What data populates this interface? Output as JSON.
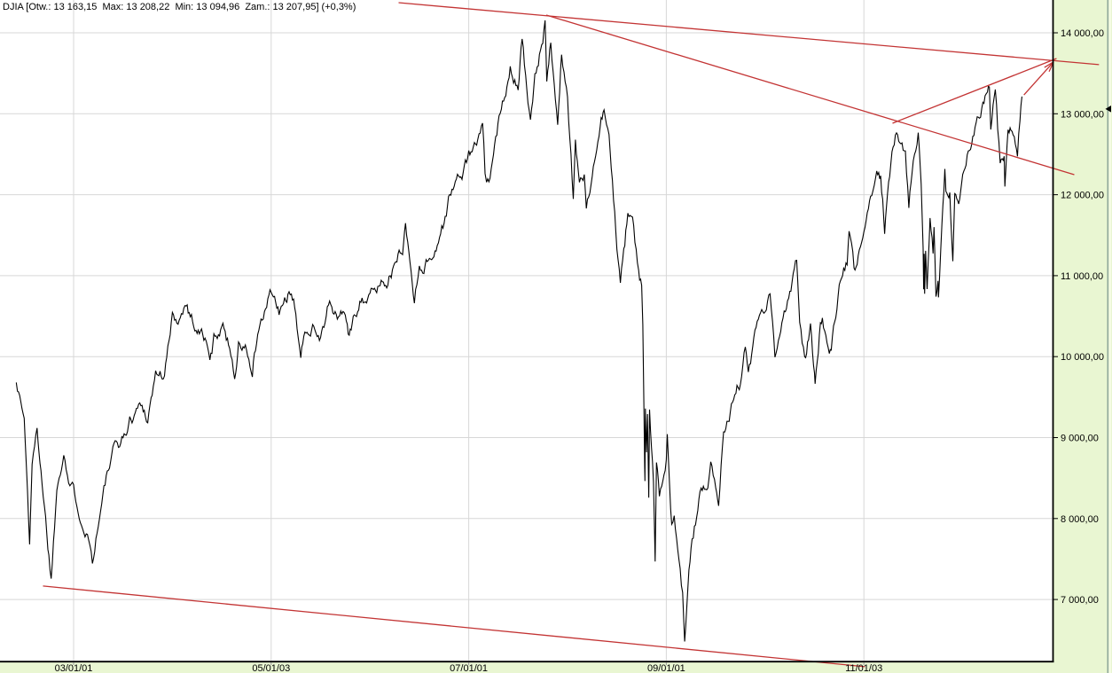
{
  "header": {
    "title": "DJIA [Otw.: 13 163,15  Max: 13 208,22  Min: 13 094,96  Zam.: 13 207,95] (+0,3%)"
  },
  "colors": {
    "background": "#ffffff",
    "axis_panel_green": "#e9f6d2",
    "panel_edge_dark": "#8fa89b",
    "panel_edge_light": "#f4fbe3",
    "grid": "#d7d7d7",
    "tick": "#9a9a9a",
    "price_line": "#000000",
    "trend_line": "#c33434",
    "axis_border": "#000000",
    "marker": "#000000"
  },
  "chart_data": {
    "type": "line",
    "title": "DJIA",
    "summary": {
      "open_label": "Otw.:",
      "open": "13 163,15",
      "high_label": "Max:",
      "high": "13 208,22",
      "low_label": "Min:",
      "low": "13 094,96",
      "close_label": "Zam.:",
      "close": "13 207,95",
      "change_pct": "+0,3%"
    },
    "xlabel": "",
    "ylabel": "",
    "grid": true,
    "ylim": [
      6230,
      14400
    ],
    "xlim_years": [
      2002.35,
      2013.45
    ],
    "y_axis": {
      "side": "right",
      "ticks": [
        {
          "value": 14000,
          "label": "14 000,00"
        },
        {
          "value": 13000,
          "label": "13 000,00"
        },
        {
          "value": 12000,
          "label": "12 000,00"
        },
        {
          "value": 11000,
          "label": "11 000,00"
        },
        {
          "value": 10000,
          "label": "10 000,00"
        },
        {
          "value": 9000,
          "label": "9 000,00"
        },
        {
          "value": 8000,
          "label": "8 000,00"
        },
        {
          "value": 7000,
          "label": "7 000,00"
        }
      ]
    },
    "x_axis": {
      "ticks": [
        {
          "t": 2003.0,
          "label": "03/01/01"
        },
        {
          "t": 2005.0,
          "label": "05/01/03"
        },
        {
          "t": 2007.0,
          "label": "07/01/01"
        },
        {
          "t": 2009.0,
          "label": "09/01/01"
        },
        {
          "t": 2011.0,
          "label": "11/01/03"
        }
      ]
    },
    "last_price_marker": {
      "value": 13060
    },
    "trendlines": [
      {
        "name": "upper-resistance-line",
        "from": [
          2006.29,
          14372
        ],
        "to": [
          2013.38,
          13607
        ],
        "arrow": false
      },
      {
        "name": "resistance-from-2007-peak",
        "from": [
          2007.785,
          14219
        ],
        "to": [
          2013.13,
          12248
        ],
        "arrow": false
      },
      {
        "name": "support-of-2011-2012-rally",
        "from": [
          2011.29,
          12883
        ],
        "to": [
          2012.95,
          13682
        ],
        "arrow": false
      },
      {
        "name": "support-under-2002-2009-lows",
        "from": [
          2002.69,
          7167
        ],
        "to": [
          2011.01,
          6170
        ],
        "arrow": false
      },
      {
        "name": "projection-arrow-to-apex",
        "from": [
          2012.62,
          13233
        ],
        "to": [
          2012.92,
          13640
        ],
        "arrow": true
      }
    ],
    "series": [
      {
        "name": "DJIA close",
        "points": [
          [
            2002.42,
            9720
          ],
          [
            2002.5,
            9243
          ],
          [
            2002.555,
            7702
          ],
          [
            2002.58,
            8737
          ],
          [
            2002.63,
            9053
          ],
          [
            2002.67,
            8664
          ],
          [
            2002.74,
            7701
          ],
          [
            2002.75,
            7592
          ],
          [
            2002.773,
            7286
          ],
          [
            2002.83,
            8397
          ],
          [
            2002.9,
            8931
          ],
          [
            2002.95,
            8512
          ],
          [
            2003.0,
            8342
          ],
          [
            2003.08,
            8054
          ],
          [
            2003.14,
            7891
          ],
          [
            2003.19,
            7524
          ],
          [
            2003.25,
            7992
          ],
          [
            2003.33,
            8480
          ],
          [
            2003.42,
            8850
          ],
          [
            2003.5,
            8985
          ],
          [
            2003.58,
            9234
          ],
          [
            2003.67,
            9416
          ],
          [
            2003.75,
            9275
          ],
          [
            2003.83,
            9801
          ],
          [
            2003.92,
            9782
          ],
          [
            2004.0,
            10454
          ],
          [
            2004.08,
            10488
          ],
          [
            2004.14,
            10737
          ],
          [
            2004.17,
            10584
          ],
          [
            2004.25,
            10358
          ],
          [
            2004.33,
            10226
          ],
          [
            2004.38,
            9906
          ],
          [
            2004.42,
            10188
          ],
          [
            2004.5,
            10435
          ],
          [
            2004.58,
            10140
          ],
          [
            2004.63,
            9815
          ],
          [
            2004.67,
            10174
          ],
          [
            2004.75,
            10080
          ],
          [
            2004.81,
            9750
          ],
          [
            2004.83,
            10027
          ],
          [
            2004.92,
            10428
          ],
          [
            2005.0,
            10783
          ],
          [
            2005.08,
            10490
          ],
          [
            2005.17,
            10766
          ],
          [
            2005.25,
            10504
          ],
          [
            2005.3,
            10012
          ],
          [
            2005.33,
            10193
          ],
          [
            2005.42,
            10467
          ],
          [
            2005.5,
            10275
          ],
          [
            2005.58,
            10641
          ],
          [
            2005.67,
            10482
          ],
          [
            2005.75,
            10569
          ],
          [
            2005.79,
            10216
          ],
          [
            2005.83,
            10440
          ],
          [
            2005.92,
            10806
          ],
          [
            2006.0,
            10718
          ],
          [
            2006.08,
            10865
          ],
          [
            2006.17,
            10993
          ],
          [
            2006.25,
            11109
          ],
          [
            2006.33,
            11367
          ],
          [
            2006.36,
            11643
          ],
          [
            2006.45,
            10706
          ],
          [
            2006.5,
            11150
          ],
          [
            2006.58,
            11186
          ],
          [
            2006.67,
            11381
          ],
          [
            2006.75,
            11679
          ],
          [
            2006.83,
            12080
          ],
          [
            2006.92,
            12222
          ],
          [
            2007.0,
            12463
          ],
          [
            2007.08,
            12622
          ],
          [
            2007.14,
            12787
          ],
          [
            2007.165,
            12216
          ],
          [
            2007.18,
            12050
          ],
          [
            2007.25,
            12354
          ],
          [
            2007.33,
            13063
          ],
          [
            2007.42,
            13628
          ],
          [
            2007.5,
            13409
          ],
          [
            2007.54,
            14000
          ],
          [
            2007.6,
            13182
          ],
          [
            2007.625,
            12846
          ],
          [
            2007.67,
            13358
          ],
          [
            2007.75,
            13896
          ],
          [
            2007.773,
            14164
          ],
          [
            2007.79,
            13522
          ],
          [
            2007.83,
            13930
          ],
          [
            2007.9,
            12743
          ],
          [
            2007.94,
            13727
          ],
          [
            2008.0,
            13265
          ],
          [
            2008.058,
            11971
          ],
          [
            2008.08,
            12650
          ],
          [
            2008.12,
            12182
          ],
          [
            2008.17,
            12266
          ],
          [
            2008.19,
            11740
          ],
          [
            2008.25,
            12263
          ],
          [
            2008.33,
            12820
          ],
          [
            2008.37,
            13058
          ],
          [
            2008.42,
            12638
          ],
          [
            2008.5,
            11350
          ],
          [
            2008.535,
            10963
          ],
          [
            2008.58,
            11378
          ],
          [
            2008.61,
            11782
          ],
          [
            2008.67,
            11544
          ],
          [
            2008.72,
            11022
          ],
          [
            2008.75,
            10851
          ],
          [
            2008.762,
            10325
          ],
          [
            2008.775,
            9258
          ],
          [
            2008.781,
            8579
          ],
          [
            2008.784,
            8451
          ],
          [
            2008.788,
            9387
          ],
          [
            2008.8,
            8852
          ],
          [
            2008.81,
            9265
          ],
          [
            2008.822,
            8176
          ],
          [
            2008.83,
            9325
          ],
          [
            2008.87,
            8497
          ],
          [
            2008.887,
            7552
          ],
          [
            2008.9,
            8829
          ],
          [
            2008.93,
            8419
          ],
          [
            2009.0,
            8776
          ],
          [
            2009.01,
            9034
          ],
          [
            2009.055,
            7949
          ],
          [
            2009.08,
            8001
          ],
          [
            2009.14,
            7365
          ],
          [
            2009.165,
            7063
          ],
          [
            2009.186,
            6547
          ],
          [
            2009.25,
            7609
          ],
          [
            2009.33,
            8168
          ],
          [
            2009.42,
            8500
          ],
          [
            2009.45,
            8799
          ],
          [
            2009.5,
            8447
          ],
          [
            2009.53,
            8147
          ],
          [
            2009.58,
            9172
          ],
          [
            2009.67,
            9496
          ],
          [
            2009.75,
            9712
          ],
          [
            2009.8,
            10092
          ],
          [
            2009.83,
            9713
          ],
          [
            2009.92,
            10345
          ],
          [
            2010.0,
            10428
          ],
          [
            2010.05,
            10725
          ],
          [
            2010.1,
            9908
          ],
          [
            2010.17,
            10325
          ],
          [
            2010.25,
            10857
          ],
          [
            2010.32,
            11205
          ],
          [
            2010.35,
            10520
          ],
          [
            2010.4,
            10043
          ],
          [
            2010.42,
            10137
          ],
          [
            2010.46,
            10450
          ],
          [
            2010.5,
            9774
          ],
          [
            2010.506,
            9686
          ],
          [
            2010.56,
            10425
          ],
          [
            2010.58,
            10466
          ],
          [
            2010.65,
            9986
          ],
          [
            2010.67,
            10015
          ],
          [
            2010.75,
            10788
          ],
          [
            2010.83,
            11118
          ],
          [
            2010.85,
            11444
          ],
          [
            2010.9,
            10978
          ],
          [
            2010.92,
            11006
          ],
          [
            2011.0,
            11578
          ],
          [
            2011.08,
            11892
          ],
          [
            2011.13,
            12288
          ],
          [
            2011.17,
            12226
          ],
          [
            2011.21,
            11613
          ],
          [
            2011.25,
            12320
          ],
          [
            2011.33,
            12811
          ],
          [
            2011.42,
            12570
          ],
          [
            2011.455,
            11862
          ],
          [
            2011.5,
            12414
          ],
          [
            2011.55,
            12724
          ],
          [
            2011.58,
            12143
          ],
          [
            2011.6,
            11384
          ],
          [
            2011.605,
            10810
          ],
          [
            2011.61,
            11240
          ],
          [
            2011.615,
            10720
          ],
          [
            2011.625,
            11269
          ],
          [
            2011.64,
            10818
          ],
          [
            2011.67,
            11614
          ],
          [
            2011.7,
            11240
          ],
          [
            2011.71,
            11509
          ],
          [
            2011.73,
            10733
          ],
          [
            2011.75,
            10913
          ],
          [
            2011.755,
            10655
          ],
          [
            2011.79,
            11541
          ],
          [
            2011.82,
            12231
          ],
          [
            2011.83,
            11955
          ],
          [
            2011.87,
            12096
          ],
          [
            2011.9,
            11232
          ],
          [
            2011.92,
            12046
          ],
          [
            2011.96,
            11866
          ],
          [
            2012.0,
            12218
          ],
          [
            2012.08,
            12633
          ],
          [
            2012.17,
            12952
          ],
          [
            2012.25,
            13212
          ],
          [
            2012.27,
            13264
          ],
          [
            2012.285,
            12716
          ],
          [
            2012.33,
            13279
          ],
          [
            2012.38,
            12369
          ],
          [
            2012.42,
            12393
          ],
          [
            2012.427,
            12101
          ],
          [
            2012.46,
            12837
          ],
          [
            2012.5,
            12880
          ],
          [
            2012.555,
            12617
          ],
          [
            2012.58,
            13008
          ],
          [
            2012.6,
            13208
          ]
        ]
      }
    ]
  }
}
